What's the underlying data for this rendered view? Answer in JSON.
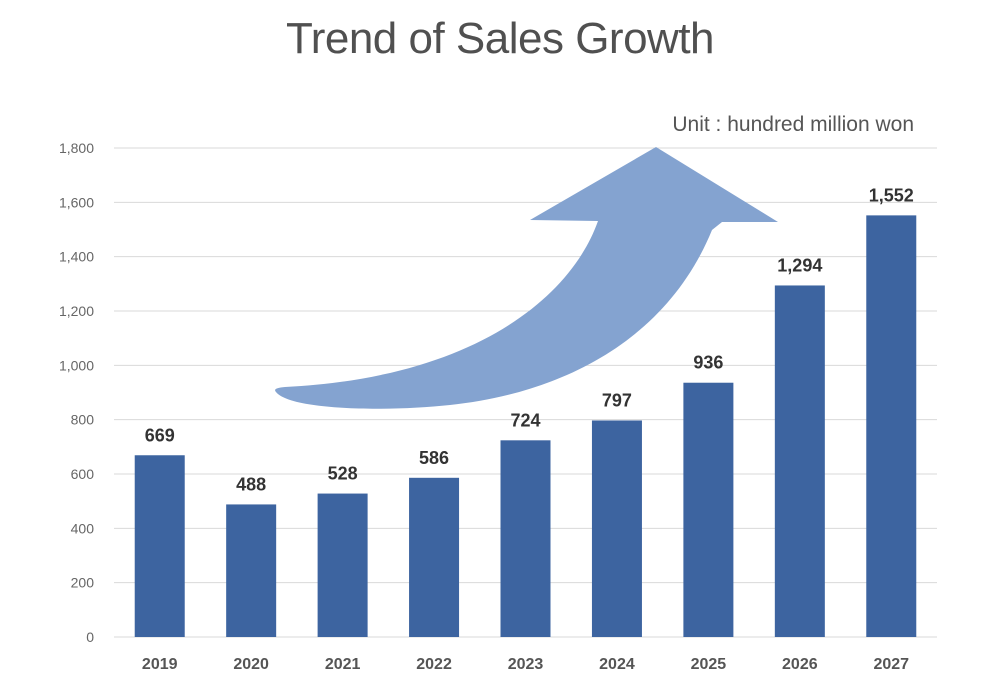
{
  "chart_data": {
    "type": "bar",
    "title": "Trend of Sales Growth",
    "unit_note": "Unit : hundred million won",
    "categories": [
      "2019",
      "2020",
      "2021",
      "2022",
      "2023",
      "2024",
      "2025",
      "2026",
      "2027"
    ],
    "values": [
      669,
      488,
      528,
      586,
      724,
      797,
      936,
      1294,
      1552
    ],
    "value_labels": [
      "669",
      "488",
      "528",
      "586",
      "724",
      "797",
      "936",
      "1,294",
      "1,552"
    ],
    "ylim": [
      0,
      1800
    ],
    "yticks": [
      0,
      200,
      400,
      600,
      800,
      1000,
      1200,
      1400,
      1600,
      1800
    ],
    "ytick_labels": [
      "0",
      "200",
      "400",
      "600",
      "800",
      "1,000",
      "1,200",
      "1,400",
      "1,600",
      "1,800"
    ],
    "grid": true,
    "xlabel": "",
    "ylabel": "",
    "annotation": "upward-trend-arrow",
    "colors": {
      "bar": "#3D64A0",
      "arrow": "#84A3D0",
      "grid": "#D9D9D9"
    }
  }
}
